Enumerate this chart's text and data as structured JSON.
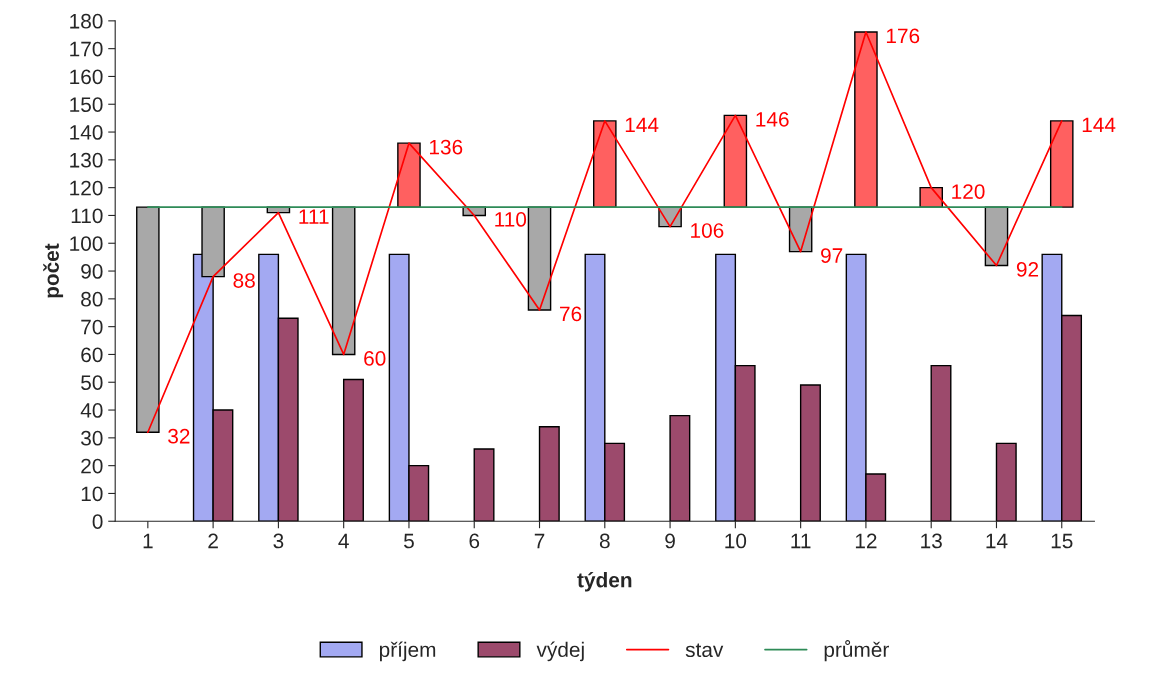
{
  "chart_data": {
    "type": "bar",
    "xlabel": "týden",
    "ylabel": "počet",
    "categories": [
      "1",
      "2",
      "3",
      "4",
      "5",
      "6",
      "7",
      "8",
      "9",
      "10",
      "11",
      "12",
      "13",
      "14",
      "15"
    ],
    "ylim": [
      0,
      180
    ],
    "yticks": [
      0,
      10,
      20,
      30,
      40,
      50,
      60,
      70,
      80,
      90,
      100,
      110,
      120,
      130,
      140,
      150,
      160,
      170,
      180
    ],
    "legend": "bottom",
    "series": [
      {
        "name": "příjem",
        "color": "#a3a9f2",
        "values": [
          null,
          96,
          96,
          null,
          96,
          null,
          null,
          96,
          null,
          96,
          null,
          96,
          null,
          null,
          96
        ]
      },
      {
        "name": "výdej",
        "color": "#9c4a6c",
        "values": [
          null,
          40,
          73,
          51,
          20,
          26,
          34,
          28,
          38,
          56,
          49,
          17,
          56,
          28,
          74
        ]
      },
      {
        "base": [
          113,
          113,
          113,
          113,
          113,
          113,
          113,
          113,
          113,
          113,
          113,
          113,
          113,
          113,
          113
        ],
        "values": [
          -81,
          -25,
          -2,
          -53,
          23,
          -3,
          -37,
          31,
          -7,
          33,
          -16,
          63,
          7,
          -21,
          31
        ],
        "colors": [
          "#a8a8a8",
          "#a8a8a8",
          "#a8a8a8",
          "#a8a8a8",
          "#ff6060",
          "#a8a8a8",
          "#a8a8a8",
          "#ff6060",
          "#a8a8a8",
          "#ff6060",
          "#a8a8a8",
          "#ff6060",
          "#ff6060",
          "#a8a8a8",
          "#ff6060"
        ]
      },
      {
        "name": "stav",
        "type": "line",
        "color": "#ff0000",
        "values": [
          32,
          88,
          111,
          60,
          136,
          110,
          76,
          144,
          106,
          146,
          97,
          176,
          120,
          92,
          144
        ],
        "value_labels": [
          "32",
          "88",
          "111",
          "60",
          "136",
          "110",
          "76",
          "144",
          "106",
          "146",
          "97",
          "176",
          "120",
          "92",
          "144"
        ]
      },
      {
        "name": "průměr",
        "type": "line",
        "color": "#2e8b57",
        "values": [
          113,
          113,
          113,
          113,
          113,
          113,
          113,
          113,
          113,
          113,
          113,
          113,
          113,
          113,
          113
        ]
      }
    ]
  }
}
